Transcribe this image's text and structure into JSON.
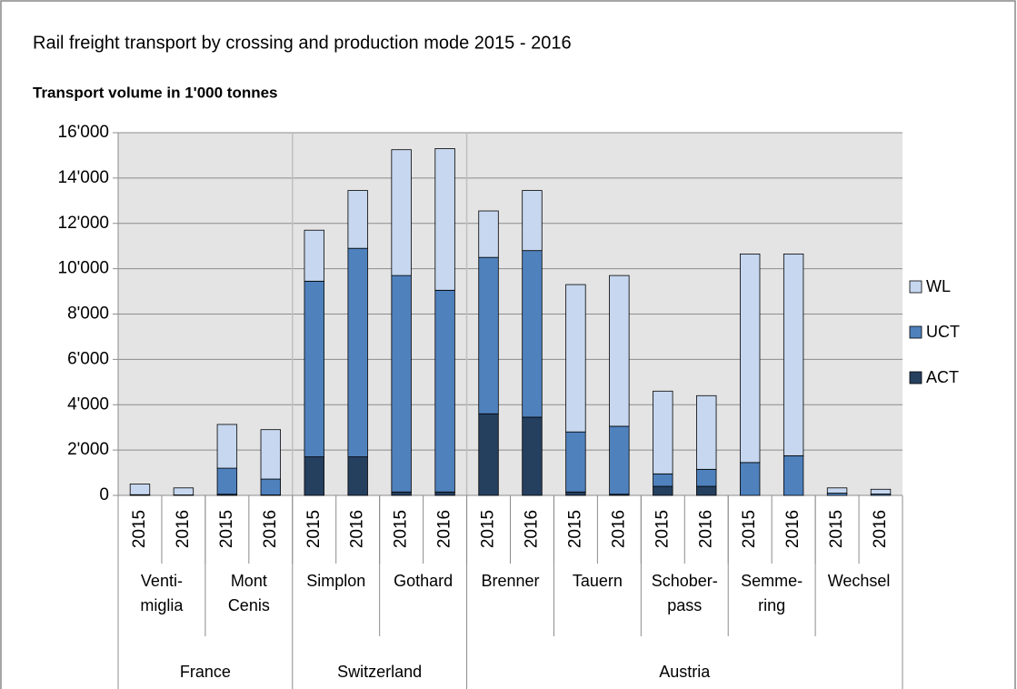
{
  "chart_data": {
    "type": "stacked-bar",
    "title": "Rail freight transport by crossing and production mode 2015 - 2016",
    "subtitle": "Transport volume in 1'000 tonnes",
    "categories": [
      "2015",
      "2016",
      "2015",
      "2016",
      "2015",
      "2016",
      "2015",
      "2016",
      "2015",
      "2016",
      "2015",
      "2016",
      "2015",
      "2016",
      "2015",
      "2016",
      "2015",
      "2016"
    ],
    "groups": [
      {
        "name": "France",
        "crossings": [
          {
            "label": [
              "Venti-",
              "miglia"
            ]
          },
          {
            "label": [
              "Mont",
              "Cenis"
            ]
          }
        ]
      },
      {
        "name": "Switzerland",
        "crossings": [
          {
            "label": [
              "Simplon"
            ]
          },
          {
            "label": [
              "Gothard"
            ]
          }
        ]
      },
      {
        "name": "Austria",
        "crossings": [
          {
            "label": [
              "Brenner"
            ]
          },
          {
            "label": [
              "Tauern"
            ]
          },
          {
            "label": [
              "Schober-",
              "pass"
            ]
          },
          {
            "label": [
              "Semme-",
              "ring"
            ]
          },
          {
            "label": [
              "Wechsel"
            ]
          }
        ]
      }
    ],
    "series": [
      {
        "name": "ACT",
        "color": "#253f5f",
        "values": [
          0,
          0,
          50,
          20,
          1700,
          1700,
          150,
          150,
          3600,
          3450,
          150,
          50,
          400,
          400,
          0,
          0,
          0,
          0
        ]
      },
      {
        "name": "UCT",
        "color": "#4f81bd",
        "values": [
          30,
          20,
          1150,
          700,
          7750,
          9200,
          9550,
          8900,
          6900,
          7350,
          2650,
          3000,
          550,
          750,
          1450,
          1750,
          100,
          60
        ]
      },
      {
        "name": "WL",
        "color": "#c6d7ef",
        "values": [
          470,
          310,
          1930,
          2180,
          2250,
          2550,
          5550,
          6250,
          2050,
          2650,
          6500,
          6650,
          3650,
          3250,
          9200,
          8900,
          230,
          210
        ]
      }
    ],
    "ylim": [
      0,
      16000
    ],
    "yticks": [
      0,
      {
        "value": 2000,
        "label": "2'000"
      },
      {
        "value": 4000,
        "label": "4'000"
      },
      {
        "value": 6000,
        "label": "6'000"
      },
      {
        "value": 8000,
        "label": "8'000"
      },
      {
        "value": 10000,
        "label": "10'000"
      },
      {
        "value": 12000,
        "label": "12'000"
      },
      {
        "value": 14000,
        "label": "14'000"
      },
      {
        "value": 16000,
        "label": "16'000"
      }
    ],
    "grid": true,
    "legend": "right"
  }
}
